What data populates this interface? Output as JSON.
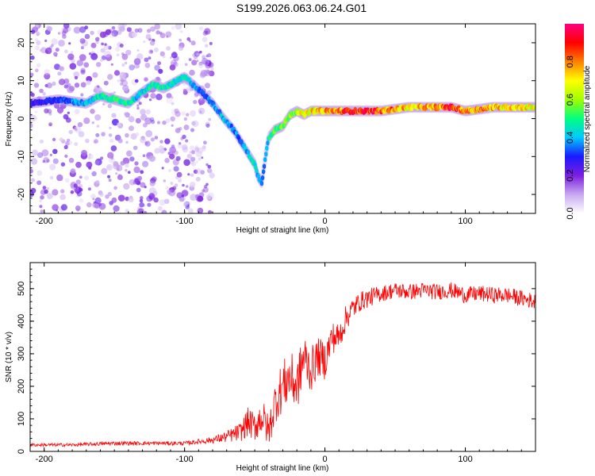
{
  "title": "S199.2026.063.06.24.G01",
  "chart_data": [
    {
      "type": "heatmap",
      "xlabel": "Height of straight line (km)",
      "ylabel": "Frequency (Hz)",
      "xlim": [
        -210,
        150
      ],
      "ylim": [
        -25,
        25
      ],
      "xticks": [
        -200,
        -100,
        0,
        100
      ],
      "yticks": [
        20,
        10,
        0,
        -10,
        -20
      ],
      "colorbar": {
        "label": "Normalized spectral amplitude",
        "ticks": [
          0.0,
          0.2,
          0.4,
          0.6,
          0.8
        ],
        "range": [
          0,
          1
        ],
        "colors": [
          "#ffffff",
          "#c8a8f0",
          "#7b1fe0",
          "#1a1aff",
          "#00c8ff",
          "#00ff80",
          "#a0ff00",
          "#ffff00",
          "#ff8000",
          "#ff0000",
          "#ff0080"
        ]
      },
      "ridge": {
        "x": [
          -210,
          -190,
          -170,
          -160,
          -150,
          -140,
          -130,
          -122,
          -115,
          -100,
          -88,
          -80,
          -72,
          -65,
          -60,
          -55,
          -50,
          -48,
          -45,
          -42,
          -40,
          -36,
          -30,
          -25,
          -20,
          -15,
          -10,
          -5,
          0,
          10,
          20,
          40,
          60,
          80,
          90,
          100,
          120,
          140,
          150
        ],
        "y": [
          4,
          5,
          4,
          6,
          5,
          4,
          7,
          9,
          8,
          11,
          7,
          4,
          0,
          -3,
          -6,
          -9,
          -12,
          -15,
          -17,
          -9,
          -5,
          -3,
          -2,
          1,
          2,
          1,
          2,
          2,
          2,
          2,
          2,
          2,
          3,
          3,
          3,
          2,
          3,
          3,
          3
        ],
        "amp": [
          0.25,
          0.3,
          0.4,
          0.45,
          0.5,
          0.45,
          0.4,
          0.5,
          0.45,
          0.45,
          0.3,
          0.35,
          0.4,
          0.35,
          0.35,
          0.4,
          0.45,
          0.4,
          0.35,
          0.35,
          0.45,
          0.55,
          0.55,
          0.6,
          0.6,
          0.7,
          0.7,
          0.75,
          0.75,
          0.8,
          0.9,
          0.85,
          0.7,
          0.8,
          0.9,
          0.8,
          0.75,
          0.7,
          0.65
        ]
      },
      "noise_region": {
        "x": [
          -210,
          -80
        ],
        "amp": 0.15
      }
    },
    {
      "type": "line",
      "xlabel": "Height of straight line (km)",
      "ylabel": "SNR (10 * v/v)",
      "xlim": [
        -210,
        150
      ],
      "ylim": [
        0,
        580
      ],
      "xticks": [
        -200,
        -100,
        0,
        100
      ],
      "yticks": [
        0,
        100,
        200,
        300,
        400,
        500
      ],
      "series": [
        {
          "name": "SNR",
          "color": "#ff0000",
          "x": [
            -210,
            -180,
            -150,
            -120,
            -100,
            -90,
            -80,
            -70,
            -60,
            -55,
            -50,
            -45,
            -40,
            -35,
            -30,
            -25,
            -20,
            -15,
            -10,
            -5,
            0,
            5,
            10,
            15,
            20,
            25,
            30,
            40,
            50,
            60,
            70,
            80,
            90,
            100,
            110,
            120,
            130,
            140,
            150
          ],
          "y": [
            20,
            20,
            25,
            25,
            25,
            30,
            35,
            45,
            60,
            90,
            75,
            110,
            60,
            160,
            200,
            230,
            200,
            290,
            250,
            290,
            280,
            350,
            350,
            410,
            440,
            460,
            470,
            485,
            495,
            490,
            495,
            490,
            495,
            480,
            485,
            480,
            480,
            470,
            460
          ],
          "noise": [
            5,
            5,
            6,
            6,
            6,
            8,
            10,
            18,
            30,
            45,
            45,
            60,
            50,
            70,
            80,
            80,
            80,
            80,
            70,
            60,
            60,
            50,
            45,
            40,
            35,
            30,
            30,
            25,
            25,
            25,
            25,
            25,
            25,
            25,
            25,
            25,
            25,
            25,
            25
          ]
        }
      ]
    }
  ]
}
